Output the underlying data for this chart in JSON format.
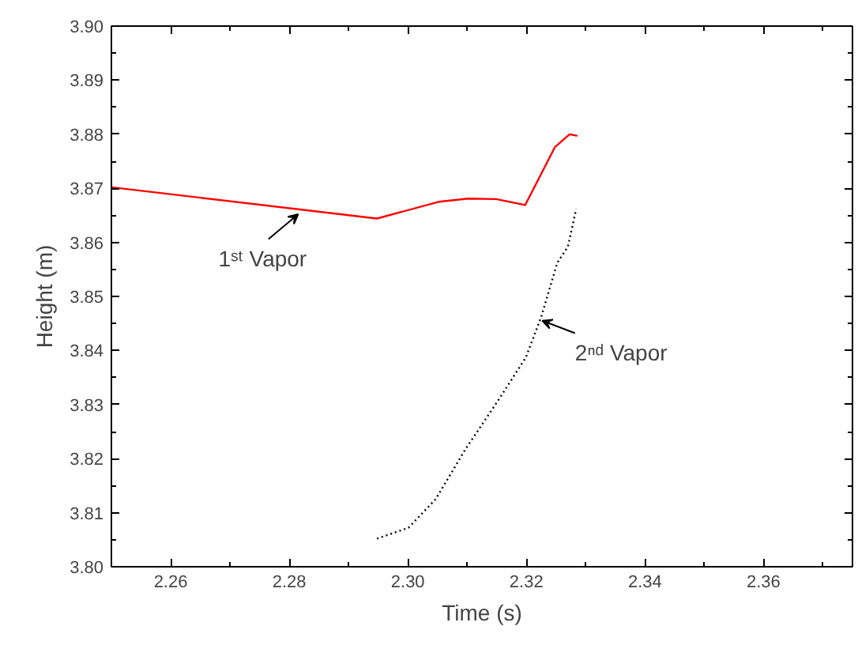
{
  "chart_data": {
    "type": "line",
    "xlabel": "Time (s)",
    "ylabel": "Height (m)",
    "xlim": [
      2.25,
      2.375
    ],
    "ylim": [
      3.8,
      3.9
    ],
    "xticks": [
      2.26,
      2.28,
      {
        "value": 2.3,
        "label": "2.30"
      },
      2.32,
      2.34,
      2.36
    ],
    "yticks": [
      {
        "value": 3.8,
        "label": "3.80"
      },
      3.81,
      3.82,
      3.83,
      3.84,
      3.85,
      3.86,
      3.87,
      3.88,
      3.89,
      {
        "value": 3.9,
        "label": "3.90"
      }
    ],
    "grid": false,
    "marker": "none",
    "series": [
      {
        "color": "#ff0000",
        "line_style": "solid",
        "x": [
          2.25,
          2.2948,
          2.3052,
          2.3102,
          2.3149,
          2.3198,
          2.3248,
          2.3273,
          2.3286
        ],
        "values": [
          3.8702,
          3.8644,
          3.8675,
          3.8681,
          3.868,
          3.8669,
          3.8776,
          3.88,
          3.8797
        ]
      },
      {
        "color": "#000000",
        "line_style": "dotted",
        "x": [
          2.2948,
          2.3001,
          2.3047,
          2.3097,
          2.3152,
          2.3199,
          2.3225,
          2.3252,
          2.327,
          2.3284
        ],
        "values": [
          3.8052,
          3.8072,
          3.8125,
          3.8217,
          3.8307,
          3.8387,
          3.8462,
          3.8562,
          3.8592,
          3.8662
        ]
      }
    ],
    "annotations": [
      {
        "text": "1ˢᵗ Vapor",
        "x": 2.2815,
        "y": 3.8652
      },
      {
        "text": "2ⁿᵈ Vapor",
        "x": 2.3227,
        "y": 3.8455
      }
    ]
  }
}
